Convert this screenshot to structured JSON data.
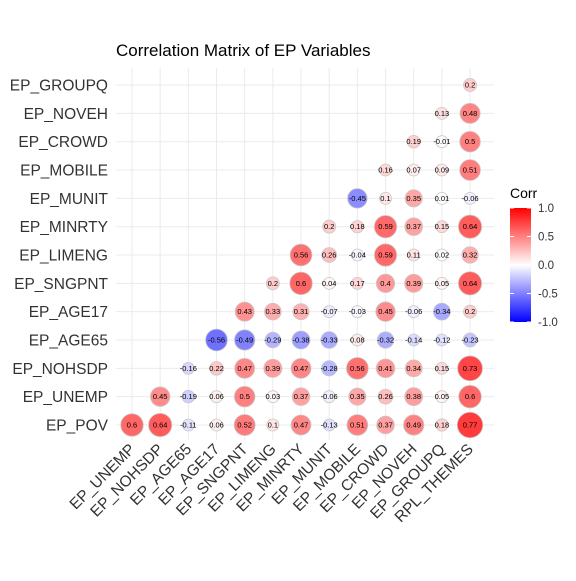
{
  "chart_data": {
    "type": "heatmap",
    "title": "Correlation Matrix of EP Variables",
    "x_categories": [
      "EP_UNEMP",
      "EP_NOHSDP",
      "EP_AGE65",
      "EP_AGE17",
      "EP_SNGPNT",
      "EP_LIMENG",
      "EP_MINRTY",
      "EP_MUNIT",
      "EP_MOBILE",
      "EP_CROWD",
      "EP_NOVEH",
      "EP_GROUPQ",
      "RPL_THEMES"
    ],
    "y_categories": [
      "EP_POV",
      "EP_UNEMP",
      "EP_NOHSDP",
      "EP_AGE65",
      "EP_AGE17",
      "EP_SNGPNT",
      "EP_LIMENG",
      "EP_MINRTY",
      "EP_MUNIT",
      "EP_MOBILE",
      "EP_CROWD",
      "EP_NOVEH",
      "EP_GROUPQ"
    ],
    "rows": [
      {
        "y": "EP_POV",
        "values": [
          0.6,
          0.64,
          -0.11,
          0.06,
          0.52,
          0.1,
          0.47,
          -0.13,
          0.51,
          0.37,
          0.49,
          0.18,
          0.77
        ]
      },
      {
        "y": "EP_UNEMP",
        "values": [
          null,
          0.45,
          -0.19,
          0.06,
          0.5,
          0.03,
          0.37,
          -0.06,
          0.35,
          0.26,
          0.38,
          0.05,
          0.6
        ]
      },
      {
        "y": "EP_NOHSDP",
        "values": [
          null,
          null,
          -0.16,
          0.22,
          0.47,
          0.39,
          0.47,
          -0.28,
          0.56,
          0.41,
          0.34,
          0.15,
          0.73
        ]
      },
      {
        "y": "EP_AGE65",
        "values": [
          null,
          null,
          null,
          -0.56,
          -0.49,
          -0.29,
          -0.38,
          -0.33,
          0.08,
          -0.32,
          -0.14,
          -0.12,
          -0.23
        ]
      },
      {
        "y": "EP_AGE17",
        "values": [
          null,
          null,
          null,
          null,
          0.43,
          0.33,
          0.31,
          -0.07,
          -0.03,
          0.45,
          -0.06,
          -0.34,
          0.2
        ]
      },
      {
        "y": "EP_SNGPNT",
        "values": [
          null,
          null,
          null,
          null,
          null,
          0.2,
          0.6,
          0.04,
          0.17,
          0.4,
          0.39,
          0.05,
          0.64
        ]
      },
      {
        "y": "EP_LIMENG",
        "values": [
          null,
          null,
          null,
          null,
          null,
          null,
          0.56,
          0.26,
          -0.04,
          0.59,
          0.11,
          0.02,
          0.32
        ]
      },
      {
        "y": "EP_MINRTY",
        "values": [
          null,
          null,
          null,
          null,
          null,
          null,
          null,
          0.2,
          0.18,
          0.59,
          0.37,
          0.15,
          0.64
        ]
      },
      {
        "y": "EP_MUNIT",
        "values": [
          null,
          null,
          null,
          null,
          null,
          null,
          null,
          null,
          -0.45,
          0.1,
          0.35,
          0.01,
          -0.06
        ]
      },
      {
        "y": "EP_MOBILE",
        "values": [
          null,
          null,
          null,
          null,
          null,
          null,
          null,
          null,
          null,
          0.16,
          0.07,
          0.09,
          0.51
        ]
      },
      {
        "y": "EP_CROWD",
        "values": [
          null,
          null,
          null,
          null,
          null,
          null,
          null,
          null,
          null,
          null,
          0.19,
          -0.01,
          0.5
        ]
      },
      {
        "y": "EP_NOVEH",
        "values": [
          null,
          null,
          null,
          null,
          null,
          null,
          null,
          null,
          null,
          null,
          null,
          0.13,
          0.48
        ]
      },
      {
        "y": "EP_GROUPQ",
        "values": [
          null,
          null,
          null,
          null,
          null,
          null,
          null,
          null,
          null,
          null,
          null,
          null,
          0.2
        ]
      }
    ],
    "legend": {
      "title": "Corr",
      "ticks": [
        "1.0",
        "0.5",
        "0.0",
        "-0.5",
        "-1.0"
      ],
      "tick_values": [
        1.0,
        0.5,
        0.0,
        -0.5,
        -1.0
      ],
      "range": [
        -1.0,
        1.0
      ],
      "colors": {
        "low": "#0000ff",
        "mid": "#ffffff",
        "high": "#ff0000"
      },
      "position": "right"
    },
    "grid": true,
    "marker": "circle sized by |corr|"
  }
}
